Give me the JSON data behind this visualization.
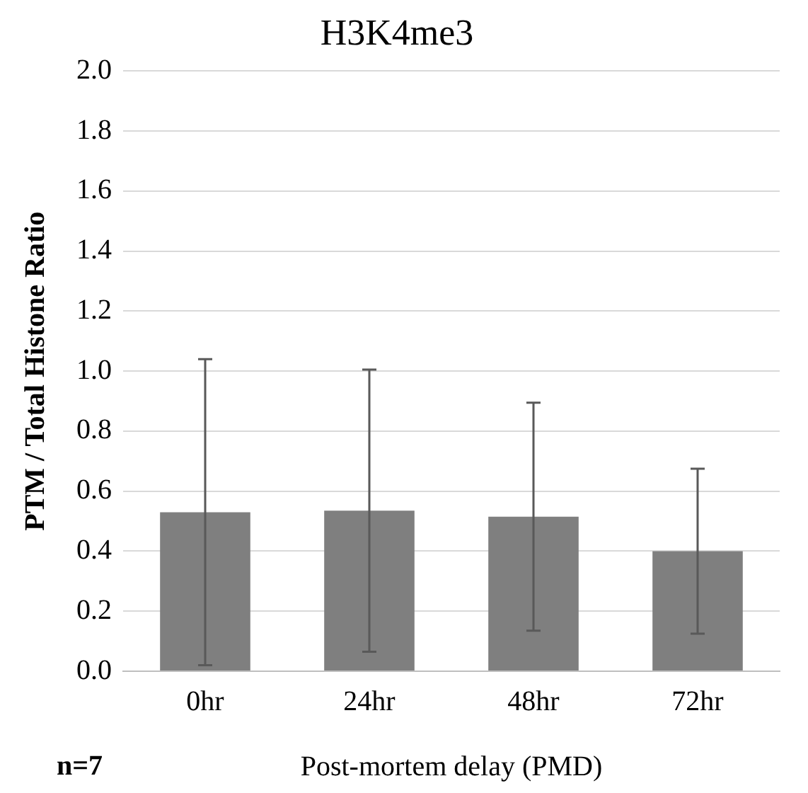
{
  "chart_data": {
    "type": "bar",
    "title": "H3K4me3",
    "xlabel": "Post-mortem delay (PMD)",
    "ylabel": "PTM / Total Histone Ratio",
    "categories": [
      "0hr",
      "24hr",
      "48hr",
      "72hr"
    ],
    "values": [
      0.53,
      0.535,
      0.515,
      0.4
    ],
    "errors": [
      0.51,
      0.47,
      0.38,
      0.275
    ],
    "color": "#7f7f7f",
    "ylim": [
      0,
      2
    ],
    "yticks": [
      {
        "value": 0,
        "label": "0.0"
      },
      {
        "value": 0.2,
        "label": "0.2"
      },
      {
        "value": 0.4,
        "label": "0.4"
      },
      {
        "value": 0.6,
        "label": "0.6"
      },
      {
        "value": 0.8,
        "label": "0.8"
      },
      {
        "value": 1,
        "label": "1.0"
      },
      {
        "value": 1.2,
        "label": "1.2"
      },
      {
        "value": 1.4,
        "label": "1.4"
      },
      {
        "value": 1.6,
        "label": "1.6"
      },
      {
        "value": 1.8,
        "label": "1.8"
      },
      {
        "value": 2,
        "label": "2.0"
      }
    ],
    "grid": "y",
    "legend": false,
    "annotations": [
      "n=7"
    ]
  }
}
